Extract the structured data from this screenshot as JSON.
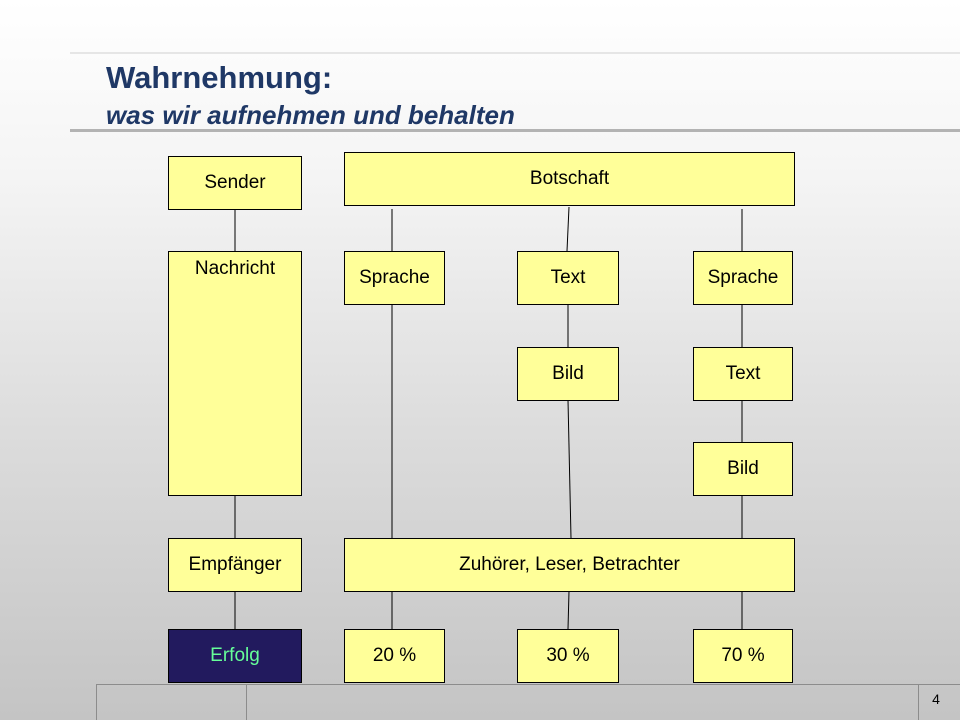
{
  "title": "Wahrnehmung:",
  "subtitle": "was wir aufnehmen und behalten",
  "boxes": {
    "sender": "Sender",
    "nachricht": "Nachricht",
    "empfaenger": "Empfänger",
    "erfolg": "Erfolg",
    "botschaft": "Botschaft",
    "sprache_1": "Sprache",
    "text_1": "Text",
    "sprache_2": "Sprache",
    "bild_1": "Bild",
    "text_2": "Text",
    "bild_2": "Bild",
    "zuhoerer": "Zuhörer, Leser, Betrachter",
    "pct_1": "20 %",
    "pct_2": "30 %",
    "pct_3": "70 %"
  },
  "page_number": "4",
  "colors": {
    "box_fill": "#ffff99",
    "erfolg_fill": "#221a5e",
    "erfolg_text": "#66ff99",
    "title": "#1f3866"
  }
}
